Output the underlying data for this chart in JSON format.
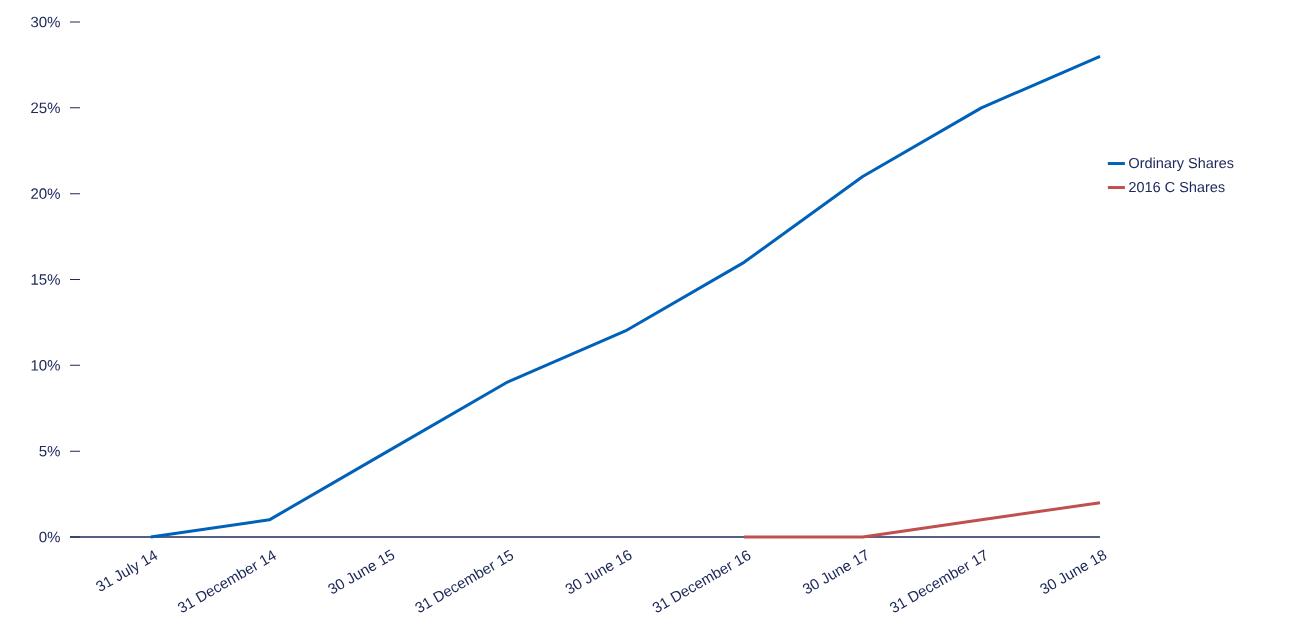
{
  "chart_data": {
    "type": "line",
    "categories": [
      "31 July 14",
      "31 December 14",
      "30 June 15",
      "31 December 15",
      "30 June 16",
      "31 December 16",
      "30 June 17",
      "31 December 17",
      "30 June 18"
    ],
    "series": [
      {
        "name": "Ordinary Shares",
        "color": "#0061b9",
        "values": [
          0,
          1,
          5,
          9,
          12,
          16,
          21,
          25,
          28
        ]
      },
      {
        "name": "2016 C Shares",
        "color": "#c0504d",
        "values": [
          null,
          null,
          null,
          null,
          null,
          0,
          0,
          1,
          2
        ]
      }
    ],
    "ylim": [
      0,
      30
    ],
    "yticks": [
      {
        "value": 0,
        "label": "0%"
      },
      {
        "value": 5,
        "label": "5%"
      },
      {
        "value": 10,
        "label": "10%"
      },
      {
        "value": 15,
        "label": "15%"
      },
      {
        "value": 20,
        "label": "20%"
      },
      {
        "value": 25,
        "label": "25%"
      },
      {
        "value": 30,
        "label": "30%"
      }
    ],
    "legend": "right"
  }
}
